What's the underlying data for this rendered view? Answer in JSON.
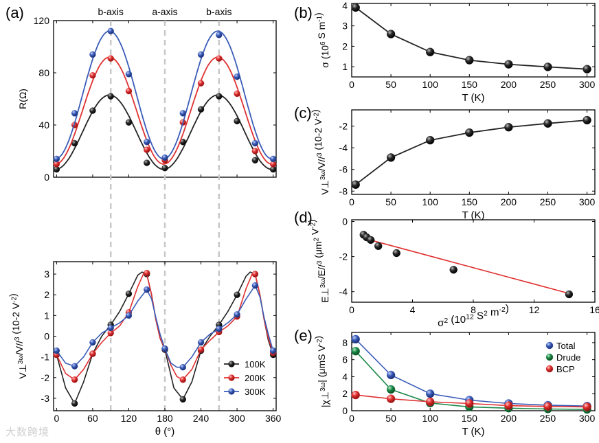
{
  "watermark": "大数跨境",
  "chart_data": [
    {
      "id": "a_top",
      "panel_label": "(a)",
      "type": "line",
      "x_from": "a_bottom",
      "ylabel": "R(Ω)",
      "xlim": [
        -5,
        365
      ],
      "ylim": [
        0,
        120
      ],
      "yticks": [
        0,
        40,
        80,
        120
      ],
      "xticks": [
        0,
        60,
        120,
        180,
        240,
        300,
        360
      ],
      "show_xticklabels": false,
      "annotations": [
        "b-axis",
        "a-axis",
        "b-axis"
      ],
      "annotation_x": [
        90,
        180,
        270
      ],
      "series": [
        {
          "color": "#222222",
          "x": [
            0,
            30,
            60,
            90,
            120,
            150,
            180,
            210,
            240,
            270,
            300,
            330,
            360
          ],
          "y": [
            6,
            26,
            51,
            62,
            42,
            11,
            7,
            27,
            52,
            62,
            43,
            13,
            6
          ],
          "fit": {
            "mid": 34.5,
            "amp": 28.5,
            "phase": -2
          }
        },
        {
          "color": "#e03030",
          "x": [
            0,
            30,
            60,
            90,
            120,
            150,
            180,
            210,
            240,
            270,
            300,
            330,
            360
          ],
          "y": [
            10,
            40,
            78,
            91,
            66,
            21,
            13,
            42,
            72,
            91,
            64,
            20,
            10
          ],
          "fit": {
            "mid": 51,
            "amp": 41,
            "phase": -2
          }
        },
        {
          "color": "#3a5cb8",
          "x": [
            0,
            30,
            60,
            90,
            120,
            150,
            180,
            210,
            240,
            270,
            300,
            330,
            360
          ],
          "y": [
            14,
            49,
            94,
            112,
            79,
            27,
            15,
            49,
            94,
            109,
            77,
            26,
            14
          ],
          "fit": {
            "mid": 63,
            "amp": 49,
            "phase": -2
          }
        }
      ]
    },
    {
      "id": "a_bottom",
      "type": "line",
      "ylabel": "V⊥3ω/V//3 (10-2 V-2)",
      "xlabel": "θ (°)",
      "xlim": [
        -5,
        365
      ],
      "ylim": [
        -3.6,
        3.6
      ],
      "yticks": [
        -3,
        -2,
        -1,
        0,
        1,
        2,
        3
      ],
      "xticks": [
        0,
        60,
        120,
        180,
        240,
        300,
        360
      ],
      "legend": "bottom-right",
      "series": [
        {
          "name": "100K",
          "color": "#222222",
          "x": [
            0,
            30,
            60,
            90,
            120,
            150,
            180,
            210,
            240,
            270,
            300,
            330,
            360
          ],
          "y": [
            -0.9,
            -3.25,
            -0.85,
            0.55,
            2.05,
            3.0,
            -0.65,
            -3.05,
            -0.7,
            0.55,
            2.0,
            3.0,
            -0.9
          ],
          "cx": [
            0,
            15,
            30,
            45,
            60,
            75,
            90,
            105,
            120,
            135,
            142,
            150,
            158,
            165,
            172,
            180,
            187,
            195,
            210,
            225,
            240,
            255,
            270,
            285,
            300,
            315,
            322,
            330,
            338,
            345,
            352,
            360
          ],
          "cy": [
            -0.9,
            -2.5,
            -3.25,
            -2.2,
            -0.85,
            0.0,
            0.55,
            1.2,
            2.05,
            2.95,
            3.1,
            3.0,
            2.0,
            0.8,
            -0.1,
            -0.65,
            -1.5,
            -2.5,
            -3.05,
            -2.2,
            -0.7,
            0.0,
            0.55,
            1.2,
            2.0,
            2.9,
            3.1,
            3.0,
            2.0,
            0.8,
            -0.2,
            -0.9
          ]
        },
        {
          "name": "200K",
          "color": "#e03030",
          "x": [
            0,
            30,
            60,
            90,
            120,
            150,
            180,
            210,
            240,
            270,
            300,
            330,
            360
          ],
          "y": [
            -0.9,
            -2.1,
            -0.85,
            0.15,
            1.15,
            3.05,
            -0.6,
            -2.1,
            -0.65,
            0.2,
            0.95,
            3.0,
            -0.8
          ],
          "cx": [
            0,
            15,
            30,
            45,
            60,
            75,
            90,
            105,
            120,
            135,
            145,
            150,
            158,
            165,
            172,
            180,
            190,
            200,
            210,
            225,
            240,
            255,
            270,
            285,
            300,
            315,
            325,
            330,
            338,
            345,
            352,
            360
          ],
          "cy": [
            -0.9,
            -1.8,
            -2.1,
            -1.6,
            -0.85,
            -0.3,
            0.15,
            0.5,
            1.15,
            2.4,
            3.05,
            3.0,
            2.0,
            0.8,
            -0.1,
            -0.6,
            -1.4,
            -1.95,
            -2.1,
            -1.6,
            -0.65,
            -0.2,
            0.2,
            0.5,
            0.95,
            2.3,
            3.0,
            3.0,
            2.0,
            0.8,
            -0.1,
            -0.8
          ]
        },
        {
          "name": "300K",
          "color": "#3a5cb8",
          "x": [
            0,
            30,
            60,
            90,
            120,
            150,
            180,
            210,
            240,
            270,
            300,
            330,
            360
          ],
          "y": [
            -0.7,
            -1.45,
            -0.3,
            0.4,
            1.0,
            2.25,
            -0.6,
            -1.5,
            -0.3,
            0.35,
            1.05,
            2.45,
            -0.7
          ],
          "cx": [
            0,
            15,
            30,
            45,
            60,
            75,
            90,
            105,
            120,
            135,
            150,
            158,
            165,
            172,
            180,
            190,
            200,
            210,
            225,
            240,
            255,
            270,
            285,
            300,
            315,
            330,
            338,
            345,
            352,
            360
          ],
          "cy": [
            -0.7,
            -1.3,
            -1.45,
            -1.0,
            -0.3,
            0.15,
            0.4,
            0.65,
            1.0,
            1.7,
            2.25,
            1.8,
            0.9,
            0.1,
            -0.6,
            -1.3,
            -1.5,
            -1.5,
            -1.0,
            -0.3,
            0.1,
            0.35,
            0.65,
            1.05,
            1.8,
            2.45,
            1.9,
            0.9,
            0.1,
            -0.7
          ]
        }
      ]
    },
    {
      "id": "b",
      "panel_label": "(b)",
      "type": "line",
      "ylabel": "σ (106 S m-1)",
      "xlabel": "T (K)",
      "xlim": [
        0,
        310
      ],
      "ylim": [
        0.5,
        4.1
      ],
      "yticks": [
        1,
        2,
        3,
        4
      ],
      "xticks": [
        0,
        50,
        100,
        150,
        200,
        250,
        300
      ],
      "series": [
        {
          "color": "#222222",
          "x": [
            5,
            50,
            100,
            150,
            200,
            250,
            300
          ],
          "y": [
            3.9,
            2.6,
            1.72,
            1.32,
            1.12,
            0.99,
            0.88
          ]
        }
      ]
    },
    {
      "id": "c",
      "panel_label": "(c)",
      "type": "line",
      "ylabel": "V⊥3ω/V//3 (10-2 V-2)",
      "xlabel": "T (K)",
      "xlim": [
        0,
        310
      ],
      "ylim": [
        -8.3,
        -0.5
      ],
      "yticks": [
        -8,
        -6,
        -4,
        -2
      ],
      "xticks": [
        0,
        50,
        100,
        150,
        200,
        250,
        300
      ],
      "series": [
        {
          "color": "#222222",
          "x": [
            5,
            50,
            100,
            150,
            200,
            250,
            300
          ],
          "y": [
            -7.4,
            -4.9,
            -3.3,
            -2.6,
            -2.1,
            -1.75,
            -1.45
          ]
        }
      ]
    },
    {
      "id": "d",
      "panel_label": "(d)",
      "type": "scatter",
      "ylabel": "E⊥3ω/E//3 (μm2 V-2)",
      "xlabel": "σ2 (1012 S2 m-2)",
      "xlim": [
        0,
        16
      ],
      "ylim": [
        -4.6,
        0.1
      ],
      "yticks": [
        -4,
        -2,
        0
      ],
      "xticks": [
        0,
        4,
        8,
        12,
        16
      ],
      "series": [
        {
          "color": "#222222",
          "x": [
            0.78,
            0.98,
            1.25,
            1.75,
            2.95,
            6.7,
            14.3
          ],
          "y": [
            -0.75,
            -0.9,
            -1.05,
            -1.4,
            -1.8,
            -2.75,
            -4.15
          ]
        }
      ],
      "fit_line": {
        "color": "#e03030",
        "x": [
          0.78,
          14.3
        ],
        "y": [
          -0.95,
          -4.1
        ]
      }
    },
    {
      "id": "e",
      "panel_label": "(e)",
      "type": "line",
      "ylabel": "|χ⊥3ω| (μmS V-2)",
      "xlabel": "T (K)",
      "xlim": [
        0,
        310
      ],
      "ylim": [
        0,
        9.2
      ],
      "yticks": [
        0,
        2,
        4,
        6,
        8
      ],
      "xticks": [
        0,
        50,
        100,
        150,
        200,
        250,
        300
      ],
      "legend": "top-right",
      "series": [
        {
          "name": "Total",
          "color": "#3a5cb8",
          "x": [
            5,
            50,
            100,
            150,
            200,
            250,
            300
          ],
          "y": [
            8.4,
            4.2,
            2.0,
            1.25,
            0.85,
            0.65,
            0.55
          ]
        },
        {
          "name": "Drude",
          "color": "#1e8a4a",
          "x": [
            5,
            50,
            100,
            150,
            200,
            250,
            300
          ],
          "y": [
            7.0,
            2.5,
            0.9,
            0.45,
            0.3,
            0.2,
            0.15
          ]
        },
        {
          "name": "BCP",
          "color": "#e03030",
          "x": [
            5,
            50,
            100,
            150,
            200,
            250,
            300
          ],
          "y": [
            1.85,
            1.4,
            1.05,
            0.85,
            0.6,
            0.5,
            0.45
          ]
        }
      ]
    }
  ]
}
